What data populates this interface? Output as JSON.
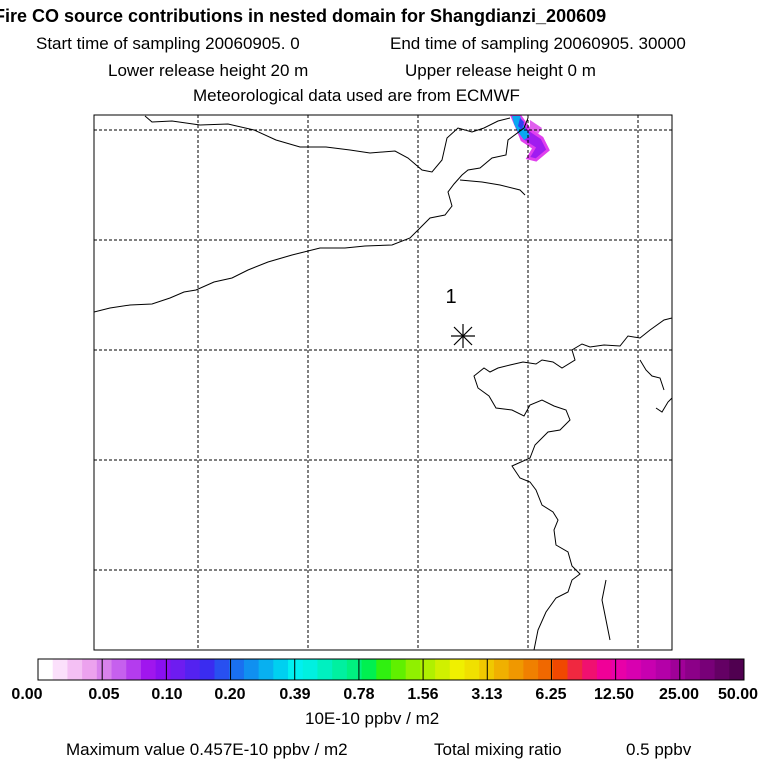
{
  "header": {
    "title": "Fire CO source contributions in nested domain for Shangdianzi_200609",
    "line2_left": "Start time of sampling 20060905.     0",
    "line2_right": "End time of sampling 20060905. 30000",
    "line3_left": "Lower release height   20 m",
    "line3_right": "Upper release height    0 m",
    "line4": "Meteorological data used are from ECMWF"
  },
  "map": {
    "station_label": "1",
    "station_marker": "asterisk-icon",
    "grid": "dashed"
  },
  "colorbar": {
    "labels": [
      "0.00",
      "0.05",
      "0.10",
      "0.20",
      "0.39",
      "0.78",
      "1.56",
      "3.13",
      "6.25",
      "12.50",
      "25.00",
      "50.00"
    ],
    "colors": [
      "#ffffff",
      "#fbe0fb",
      "#f4c0f4",
      "#eca2ee",
      "#d882ec",
      "#c660ee",
      "#b43cee",
      "#a016ee",
      "#8a10f0",
      "#6e1cf0",
      "#5422f0",
      "#3a2cf0",
      "#2850f0",
      "#1a70f0",
      "#1090f0",
      "#08b0f0",
      "#00d0f0",
      "#00f0f0",
      "#00f0e0",
      "#00f0c0",
      "#00f0a0",
      "#00f080",
      "#00f050",
      "#30f010",
      "#60f000",
      "#90f000",
      "#b0f000",
      "#d0f000",
      "#f0f000",
      "#f0e000",
      "#f0c800",
      "#f0b000",
      "#f09800",
      "#f08000",
      "#f06800",
      "#f04800",
      "#f02840",
      "#f01070",
      "#f00098",
      "#e800a8",
      "#d800b0",
      "#c800b0",
      "#b400a8",
      "#a00098",
      "#8c0088",
      "#780078",
      "#640064",
      "#500050"
    ],
    "unit": "10E-10 ppbv / m2"
  },
  "footer": {
    "max_value": "Maximum value  0.457E-10 ppbv / m2",
    "total_mixing": "Total mixing ratio",
    "total_value": "0.5 ppbv"
  }
}
